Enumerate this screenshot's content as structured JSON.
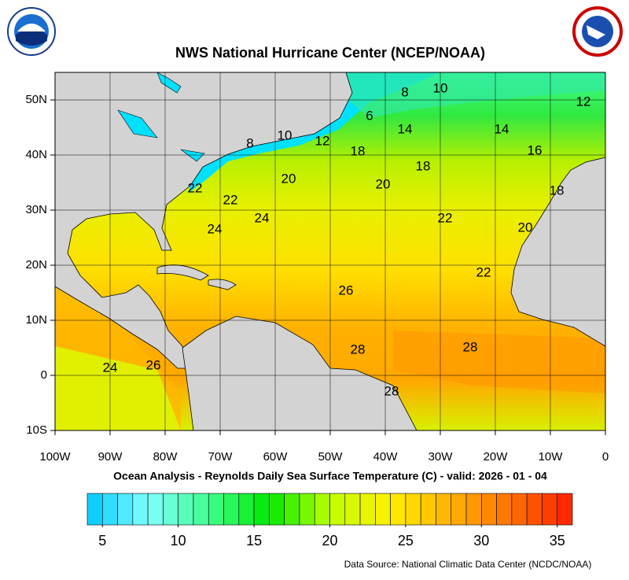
{
  "header": {
    "title": "NWS National Hurricane Center (NCEP/NOAA)"
  },
  "map": {
    "xlim": [
      -100,
      0
    ],
    "ylim": [
      -10,
      55
    ],
    "xticks": [
      {
        "value": -100,
        "label": "100W"
      },
      {
        "value": -90,
        "label": "90W"
      },
      {
        "value": -80,
        "label": "80W"
      },
      {
        "value": -70,
        "label": "70W"
      },
      {
        "value": -60,
        "label": "60W"
      },
      {
        "value": -50,
        "label": "50W"
      },
      {
        "value": -40,
        "label": "40W"
      },
      {
        "value": -30,
        "label": "30W"
      },
      {
        "value": -20,
        "label": "20W"
      },
      {
        "value": -10,
        "label": "10W"
      },
      0
    ],
    "yticks": [
      {
        "value": -10,
        "label": "10S"
      },
      0,
      {
        "value": 10,
        "label": "10N"
      },
      {
        "value": 20,
        "label": "20N"
      },
      {
        "value": 30,
        "label": "30N"
      },
      {
        "value": 40,
        "label": "40N"
      },
      {
        "value": 50,
        "label": "50N"
      }
    ],
    "grid": true,
    "contour_labels": [
      "10",
      "8",
      "12",
      "6",
      "14",
      "14",
      "8",
      "10",
      "12",
      "18",
      "16",
      "18",
      "20",
      "20",
      "22",
      "18",
      "22",
      "24",
      "22",
      "24",
      "20",
      "22",
      "26",
      "28",
      "28",
      "24",
      "26",
      "28"
    ]
  },
  "caption": "Ocean Analysis - Reynolds Daily Sea Surface Temperature (C) - valid: 2026 - 01 - 04",
  "colorbar": {
    "lim": [
      4,
      36
    ],
    "ticks": [
      5,
      10,
      15,
      20,
      25,
      30,
      35
    ],
    "colors": [
      "#00c8ff",
      "#80ffff",
      "#40ff90",
      "#00e800",
      "#c0ff00",
      "#fff000",
      "#ffb000",
      "#ff7000",
      "#ff2000"
    ]
  },
  "footer": {
    "source": "Data Source: National Climatic Data Center (NCDC/NOAA)"
  }
}
